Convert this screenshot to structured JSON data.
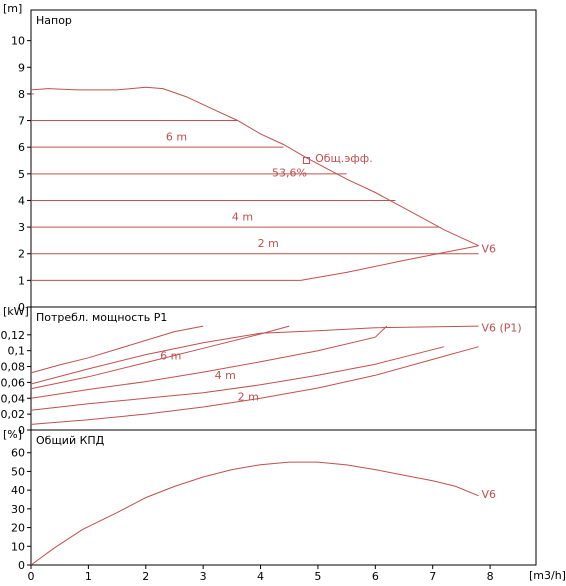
{
  "colors": {
    "curve": "#c0504d",
    "grid": "#c0504d",
    "frame": "#000000",
    "text": "#000000"
  },
  "chart_data": [
    {
      "type": "line",
      "panel": "head",
      "title": "Напор",
      "ylabel": "[m]",
      "xlim": [
        0,
        8.8
      ],
      "ylim": [
        0,
        11
      ],
      "yticks": [
        "0",
        "1",
        "2",
        "3",
        "4",
        "5",
        "6",
        "7",
        "8",
        "9",
        "10"
      ],
      "gridlines": [
        1,
        2,
        3,
        4,
        5,
        6,
        7,
        8
      ],
      "series": [
        {
          "name": "V6",
          "label_x": 7.85,
          "label_y": 2.2,
          "points": [
            [
              0,
              8.15
            ],
            [
              0.3,
              8.2
            ],
            [
              0.8,
              8.15
            ],
            [
              1.5,
              8.15
            ],
            [
              2.0,
              8.25
            ],
            [
              2.3,
              8.2
            ],
            [
              2.7,
              7.9
            ],
            [
              3.2,
              7.4
            ],
            [
              3.6,
              7.0
            ],
            [
              4.0,
              6.5
            ],
            [
              4.4,
              6.1
            ],
            [
              4.8,
              5.6
            ],
            [
              5.5,
              4.8
            ],
            [
              6.0,
              4.3
            ],
            [
              6.6,
              3.6
            ],
            [
              7.2,
              2.9
            ],
            [
              7.8,
              2.3
            ]
          ]
        },
        {
          "name": "",
          "points": [
            [
              4.7,
              1.0
            ],
            [
              5.5,
              1.3
            ],
            [
              6.5,
              1.75
            ],
            [
              7.8,
              2.3
            ]
          ]
        }
      ],
      "level_labels": [
        {
          "text": "6 m",
          "x": 2.35,
          "y": 6.25
        },
        {
          "text": "4 m",
          "x": 3.5,
          "y": 3.25
        },
        {
          "text": "2 m",
          "x": 3.95,
          "y": 2.25
        }
      ],
      "annotations": [
        {
          "text": "Общ.эфф.",
          "x": 4.95,
          "y": 5.6
        },
        {
          "text": "53,6%",
          "x": 4.2,
          "y": 5.05
        }
      ],
      "marker": {
        "x": 4.8,
        "y": 5.5
      }
    },
    {
      "type": "line",
      "panel": "power",
      "title": "Потребл. мощность P1",
      "ylabel": "[kW]",
      "xlim": [
        0,
        8.8
      ],
      "ylim": [
        0,
        0.15
      ],
      "yticks": [
        "0",
        "0,02",
        "0,04",
        "0,06",
        "0,08",
        "0,1",
        "0,12"
      ],
      "series": [
        {
          "name": "V6 (P1)",
          "label_x": 7.85,
          "label_y": 0.129,
          "points": [
            [
              0,
              0.058
            ],
            [
              1.0,
              0.077
            ],
            [
              2.0,
              0.095
            ],
            [
              3.0,
              0.11
            ],
            [
              4.0,
              0.122
            ],
            [
              5.0,
              0.125
            ],
            [
              6.0,
              0.129
            ],
            [
              7.8,
              0.131
            ]
          ]
        },
        {
          "name": "",
          "points": [
            [
              0,
              0.072
            ],
            [
              0.5,
              0.082
            ],
            [
              1.0,
              0.091
            ],
            [
              1.5,
              0.102
            ],
            [
              2.0,
              0.113
            ],
            [
              2.5,
              0.124
            ],
            [
              3.0,
              0.131
            ]
          ]
        },
        {
          "name": "",
          "points": [
            [
              0,
              0.052
            ],
            [
              1.0,
              0.067
            ],
            [
              2.0,
              0.085
            ],
            [
              3.0,
              0.103
            ],
            [
              4.0,
              0.121
            ],
            [
              4.5,
              0.131
            ]
          ]
        },
        {
          "name": "",
          "points": [
            [
              0,
              0.04
            ],
            [
              1.0,
              0.051
            ],
            [
              2.0,
              0.061
            ],
            [
              3.0,
              0.073
            ],
            [
              4.0,
              0.086
            ],
            [
              5.0,
              0.1
            ],
            [
              6.0,
              0.117
            ],
            [
              6.2,
              0.131
            ]
          ]
        },
        {
          "name": "",
          "points": [
            [
              0,
              0.025
            ],
            [
              1.0,
              0.033
            ],
            [
              2.0,
              0.04
            ],
            [
              3.0,
              0.047
            ],
            [
              4.0,
              0.057
            ],
            [
              5.0,
              0.069
            ],
            [
              6.0,
              0.083
            ],
            [
              7.2,
              0.105
            ]
          ]
        },
        {
          "name": "",
          "points": [
            [
              0,
              0.007
            ],
            [
              1.0,
              0.013
            ],
            [
              2.0,
              0.02
            ],
            [
              3.0,
              0.029
            ],
            [
              4.0,
              0.04
            ],
            [
              5.0,
              0.053
            ],
            [
              6.0,
              0.069
            ],
            [
              7.0,
              0.089
            ],
            [
              7.8,
              0.105
            ]
          ]
        }
      ],
      "level_labels": [
        {
          "text": "6 m",
          "x": 2.25,
          "y": 0.089
        },
        {
          "text": "4 m",
          "x": 3.2,
          "y": 0.064
        },
        {
          "text": "2 m",
          "x": 3.6,
          "y": 0.037
        }
      ]
    },
    {
      "type": "line",
      "panel": "efficiency",
      "title": "Общий КПД",
      "ylabel": "[%]",
      "xlabel": "[m3/h]",
      "xlim": [
        0,
        8.8
      ],
      "ylim": [
        0,
        70
      ],
      "yticks": [
        "0",
        "10",
        "20",
        "30",
        "40",
        "50",
        "60"
      ],
      "xticks": [
        "0",
        "1",
        "2",
        "3",
        "4",
        "5",
        "6",
        "7",
        "8"
      ],
      "series": [
        {
          "name": "V6",
          "label_x": 7.85,
          "label_y": 38,
          "points": [
            [
              0,
              0
            ],
            [
              0.4,
              9
            ],
            [
              0.9,
              19
            ],
            [
              1.5,
              28
            ],
            [
              2.0,
              36
            ],
            [
              2.5,
              42
            ],
            [
              3.0,
              47
            ],
            [
              3.5,
              51
            ],
            [
              4.0,
              53.6
            ],
            [
              4.5,
              55
            ],
            [
              5.0,
              55
            ],
            [
              5.5,
              53.5
            ],
            [
              6.0,
              51
            ],
            [
              6.5,
              48
            ],
            [
              7.0,
              45
            ],
            [
              7.4,
              42
            ],
            [
              7.8,
              37
            ]
          ]
        }
      ]
    }
  ]
}
